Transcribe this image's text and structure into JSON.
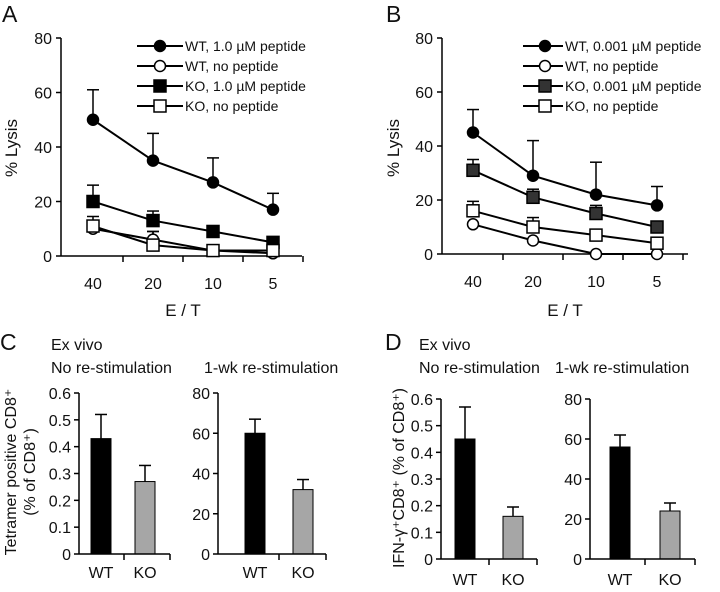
{
  "panels": {
    "a": "A",
    "b": "B",
    "c": "C",
    "d": "D"
  },
  "subtitles": {
    "ex_vivo": "Ex vivo",
    "no_restim": "No re-stimulation",
    "restim": "1-wk re-stimulation"
  },
  "chart_data": [
    {
      "id": "A",
      "type": "line",
      "xlabel": "E / T",
      "ylabel": "% Lysis",
      "ylim": [
        0,
        80
      ],
      "yticks": [
        "0",
        "20",
        "40",
        "60",
        "80"
      ],
      "categories": [
        "40",
        "20",
        "10",
        "5"
      ],
      "legend": "top-right",
      "series": [
        {
          "name": "WT, 1.0 µM peptide",
          "marker": "filled-circle",
          "values": [
            50,
            35,
            27,
            17
          ],
          "error": [
            11,
            10,
            9,
            6
          ]
        },
        {
          "name": "WT,  no peptide",
          "marker": "open-circle",
          "values": [
            10,
            6,
            2,
            1
          ],
          "error": [
            2,
            3,
            1,
            1
          ]
        },
        {
          "name": "KO, 1.0 µM peptide",
          "marker": "filled-square",
          "values": [
            20,
            13,
            9,
            5
          ],
          "error": [
            6,
            3.5,
            2,
            2
          ]
        },
        {
          "name": "KO,  no peptide",
          "marker": "open-square",
          "values": [
            11,
            4,
            2,
            2
          ],
          "error": [
            3.5,
            5,
            1.5,
            1
          ]
        }
      ]
    },
    {
      "id": "B",
      "type": "line",
      "xlabel": "E / T",
      "ylabel": "% Lysis",
      "ylim": [
        0,
        80
      ],
      "yticks": [
        "0",
        "20",
        "40",
        "60",
        "80"
      ],
      "categories": [
        "40",
        "20",
        "10",
        "5"
      ],
      "legend": "top-right",
      "series": [
        {
          "name": "WT, 0.001 µM peptide",
          "marker": "filled-circle",
          "values": [
            45,
            29,
            22,
            18
          ],
          "error": [
            8.5,
            13,
            12,
            7
          ]
        },
        {
          "name": "WT,  no peptide",
          "marker": "open-circle",
          "values": [
            11,
            5,
            0,
            0
          ],
          "error": [
            0,
            0,
            0,
            0
          ]
        },
        {
          "name": "KO, 0.001 µM peptide",
          "marker": "filled-square",
          "values": [
            31,
            21,
            15,
            10
          ],
          "error": [
            4,
            3,
            3,
            2
          ]
        },
        {
          "name": "KO,  no peptide",
          "marker": "open-square",
          "values": [
            16,
            10,
            7,
            4
          ],
          "error": [
            3.5,
            3.5,
            1,
            2
          ]
        }
      ]
    },
    {
      "id": "C-left",
      "type": "bar",
      "ylabel": "Tetramer positive CD8⁺",
      "ylabel2": "(% of CD8⁺)",
      "ylim": [
        0,
        0.6
      ],
      "yticks": [
        "0",
        "0.1",
        "0.2",
        "0.3",
        "0.4",
        "0.5",
        "0.6"
      ],
      "categories": [
        "WT",
        "KO"
      ],
      "values": [
        0.43,
        0.27
      ],
      "error": [
        0.09,
        0.06
      ],
      "colors": [
        "#000000",
        "#a6a6a6"
      ]
    },
    {
      "id": "C-right",
      "type": "bar",
      "ylim": [
        0,
        80
      ],
      "yticks": [
        "0",
        "20",
        "40",
        "60",
        "80"
      ],
      "categories": [
        "WT",
        "KO"
      ],
      "values": [
        60,
        32
      ],
      "error": [
        7,
        5
      ],
      "colors": [
        "#000000",
        "#a6a6a6"
      ]
    },
    {
      "id": "D-left",
      "type": "bar",
      "ylabel": "IFN-γ⁺CD8⁺ (% of CD8⁺)",
      "ylim": [
        0,
        0.6
      ],
      "yticks": [
        "0",
        "0.1",
        "0.2",
        "0.3",
        "0.4",
        "0.5",
        "0.6"
      ],
      "categories": [
        "WT",
        "KO"
      ],
      "values": [
        0.45,
        0.16
      ],
      "error": [
        0.12,
        0.035
      ],
      "colors": [
        "#000000",
        "#a6a6a6"
      ]
    },
    {
      "id": "D-right",
      "type": "bar",
      "ylim": [
        0,
        80
      ],
      "yticks": [
        "0",
        "20",
        "40",
        "60",
        "80"
      ],
      "categories": [
        "WT",
        "KO"
      ],
      "values": [
        56,
        24
      ],
      "error": [
        6,
        4
      ],
      "colors": [
        "#000000",
        "#a6a6a6"
      ]
    }
  ]
}
